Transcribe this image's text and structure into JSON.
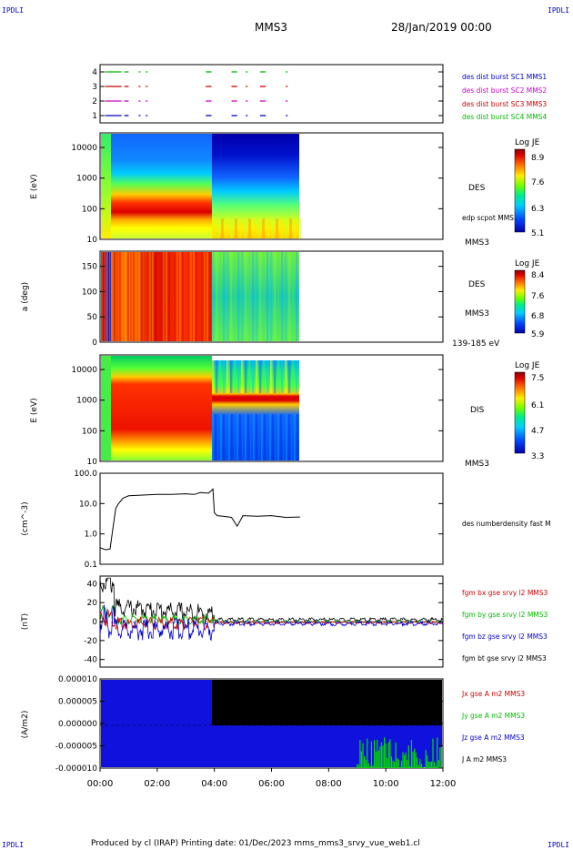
{
  "page": {
    "corner_tl": "IPDLI",
    "corner_tr": "IPDLI",
    "corner_bl": "IPDLI",
    "corner_br": "IPDLI",
    "title": "MMS3",
    "date": "28/Jan/2019 00:00",
    "footer": "Produced by cl (IRAP)   Printing date: 01/Dec/2023   mms_mms3_srvy_vue_web1.cl"
  },
  "colors": {
    "blue": "#0000cc",
    "red": "#cc0000",
    "magenta": "#cc00cc",
    "green": "#00bb00",
    "black": "#000000"
  },
  "time_axis": {
    "ticks": [
      "00:00",
      "02:00",
      "04:00",
      "06:00",
      "08:00",
      "10:00",
      "12:00"
    ],
    "range_hours": [
      0,
      12
    ]
  },
  "chart_data": [
    {
      "type": "scatter",
      "panel": "burst-availability",
      "y_ticks": [
        "1",
        "2",
        "3",
        "4"
      ],
      "ylim": [
        0.5,
        4.5
      ],
      "series": [
        {
          "name": "des dist burst SC1 MMS1",
          "y": 1,
          "color": "#0000cc",
          "intervals": [
            [
              0.18,
              0.75
            ],
            [
              0.85,
              1.0
            ],
            [
              1.35,
              1.4
            ],
            [
              1.6,
              1.65
            ],
            [
              3.7,
              3.9
            ],
            [
              4.6,
              4.8
            ],
            [
              5.1,
              5.15
            ],
            [
              5.6,
              5.8
            ],
            [
              6.5,
              6.55
            ]
          ]
        },
        {
          "name": "des dist burst SC2 MMS2",
          "y": 2,
          "color": "#cc00cc",
          "intervals": [
            [
              0.18,
              0.75
            ],
            [
              0.85,
              1.0
            ],
            [
              1.35,
              1.4
            ],
            [
              1.6,
              1.65
            ],
            [
              3.7,
              3.9
            ],
            [
              4.6,
              4.8
            ],
            [
              5.1,
              5.15
            ],
            [
              5.6,
              5.8
            ],
            [
              6.5,
              6.55
            ]
          ]
        },
        {
          "name": "des dist burst SC3 MMS3",
          "y": 3,
          "color": "#cc0000",
          "intervals": [
            [
              0.18,
              0.75
            ],
            [
              0.85,
              1.0
            ],
            [
              1.35,
              1.4
            ],
            [
              1.6,
              1.65
            ],
            [
              3.7,
              3.9
            ],
            [
              4.6,
              4.8
            ],
            [
              5.1,
              5.15
            ],
            [
              5.6,
              5.8
            ],
            [
              6.5,
              6.55
            ]
          ]
        },
        {
          "name": "des dist burst SC4 MMS4",
          "y": 4,
          "color": "#00bb00",
          "intervals": [
            [
              0.18,
              0.75
            ],
            [
              0.85,
              1.0
            ],
            [
              1.35,
              1.4
            ],
            [
              1.6,
              1.65
            ],
            [
              3.7,
              3.9
            ],
            [
              4.6,
              4.8
            ],
            [
              5.1,
              5.15
            ],
            [
              5.6,
              5.8
            ],
            [
              6.5,
              6.55
            ]
          ]
        }
      ]
    },
    {
      "type": "heatmap",
      "panel": "des-energy",
      "ylabel": "E (eV)",
      "y_ticks": [
        "10",
        "100",
        "1000",
        "10000"
      ],
      "y_scale": "log",
      "ylim": [
        10,
        30000
      ],
      "data_range_hours": [
        0,
        7
      ],
      "labels": [
        "DES",
        "edp scpot MMS3",
        "MMS3"
      ],
      "colorbar": {
        "title": "Log JE",
        "ticks": [
          "8.9",
          "7.6",
          "6.3",
          "5.1"
        ]
      }
    },
    {
      "type": "heatmap",
      "panel": "des-pitch-angle",
      "ylabel": "a (deg)",
      "y_ticks": [
        "0",
        "50",
        "100",
        "150"
      ],
      "ylim": [
        0,
        180
      ],
      "data_range_hours": [
        0,
        7
      ],
      "labels": [
        "DES",
        "MMS3",
        "139-185 eV"
      ],
      "colorbar": {
        "title": "Log JE",
        "ticks": [
          "8.4",
          "7.6",
          "6.8",
          "5.9"
        ]
      }
    },
    {
      "type": "heatmap",
      "panel": "dis-energy",
      "ylabel": "E (eV)",
      "y_ticks": [
        "10",
        "100",
        "1000",
        "10000"
      ],
      "y_scale": "log",
      "ylim": [
        10,
        30000
      ],
      "data_range_hours": [
        0,
        7
      ],
      "labels": [
        "DIS",
        "MMS3"
      ],
      "colorbar": {
        "title": "Log JE",
        "ticks": [
          "7.5",
          "6.1",
          "4.7",
          "3.3"
        ]
      }
    },
    {
      "type": "line",
      "panel": "density",
      "ylabel": "(cm^-3)",
      "y_ticks": [
        "0.1",
        "1.0",
        "10.0",
        "100.0"
      ],
      "y_scale": "log",
      "ylim": [
        0.1,
        100
      ],
      "series": [
        {
          "name": "des numberdensity fast M",
          "color": "#000000",
          "x": [
            0,
            0.2,
            0.35,
            0.45,
            0.55,
            0.65,
            0.8,
            1.0,
            1.5,
            2.0,
            2.5,
            3.0,
            3.3,
            3.5,
            3.8,
            3.95,
            4.0,
            4.1,
            4.3,
            4.6,
            4.8,
            5.0,
            5.5,
            6.0,
            6.5,
            7.0
          ],
          "y": [
            0.35,
            0.3,
            0.32,
            1.5,
            7,
            10,
            15,
            18,
            19,
            20,
            20,
            21,
            20,
            23,
            22,
            30,
            5,
            4,
            3.8,
            3.5,
            1.8,
            4,
            3.8,
            4,
            3.5,
            3.6
          ]
        }
      ]
    },
    {
      "type": "line",
      "panel": "magnetic-field",
      "ylabel": "(nT)",
      "y_ticks": [
        "-40",
        "-20",
        "0",
        "20",
        "40"
      ],
      "ylim": [
        -48,
        48
      ],
      "series": [
        {
          "name": "fgm bx gse srvy l2 MMS3",
          "color": "#cc0000"
        },
        {
          "name": "fgm by gse srvy l2 MMS3",
          "color": "#00bb00"
        },
        {
          "name": "fgm bz gse srvy l2 MMS3",
          "color": "#0000cc"
        },
        {
          "name": "fgm bt gse srvy l2 MMS3",
          "color": "#000000"
        }
      ]
    },
    {
      "type": "area",
      "panel": "current-density",
      "ylabel": "(A/m2)",
      "y_ticks": [
        "-0.000010",
        "-0.000005",
        "0.000000",
        "0.000005",
        "0.000010"
      ],
      "ylim": [
        -1e-05,
        1e-05
      ],
      "series": [
        {
          "name": "Jx gse A m2 MMS3",
          "color": "#cc0000"
        },
        {
          "name": "Jy gse A m2 MMS3",
          "color": "#00bb00"
        },
        {
          "name": "Jz gse A m2 MMS3",
          "color": "#0000cc"
        },
        {
          "name": "J A m2 MMS3",
          "color": "#000000"
        }
      ]
    }
  ]
}
